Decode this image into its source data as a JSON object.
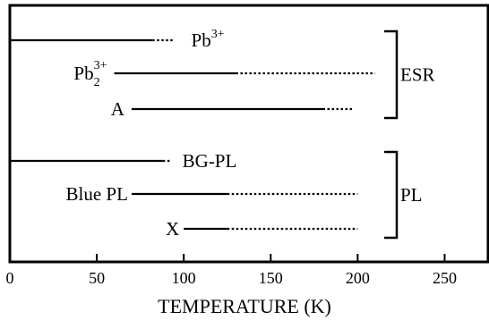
{
  "chart_data": {
    "type": "range",
    "xlabel": "TEMPERATURE (K)",
    "xlim": [
      0,
      275
    ],
    "xticks": [
      0,
      50,
      100,
      150,
      200,
      250
    ],
    "series": [
      {
        "name": "Pb",
        "sup": "3+",
        "sub": "",
        "solid": [
          0,
          82
        ],
        "dotted": [
          82,
          94
        ]
      },
      {
        "name": "Pb",
        "sup": "3+",
        "sub": "2",
        "solid": [
          60,
          130
        ],
        "dotted": [
          130,
          210
        ]
      },
      {
        "name": "A",
        "sup": "",
        "sub": "",
        "solid": [
          70,
          180
        ],
        "dotted": [
          180,
          198
        ]
      },
      {
        "name": "BG-PL",
        "sup": "",
        "sub": "",
        "solid": [
          0,
          88
        ],
        "dotted": [
          88,
          92
        ]
      },
      {
        "name": "Blue PL",
        "sup": "",
        "sub": "",
        "solid": [
          70,
          125
        ],
        "dotted": [
          125,
          200
        ]
      },
      {
        "name": "X",
        "sup": "",
        "sub": "",
        "solid": [
          100,
          125
        ],
        "dotted": [
          125,
          200
        ]
      }
    ],
    "groups": [
      {
        "label": "ESR",
        "members": [
          0,
          1,
          2
        ]
      },
      {
        "label": "PL",
        "members": [
          3,
          4,
          5
        ]
      }
    ]
  }
}
